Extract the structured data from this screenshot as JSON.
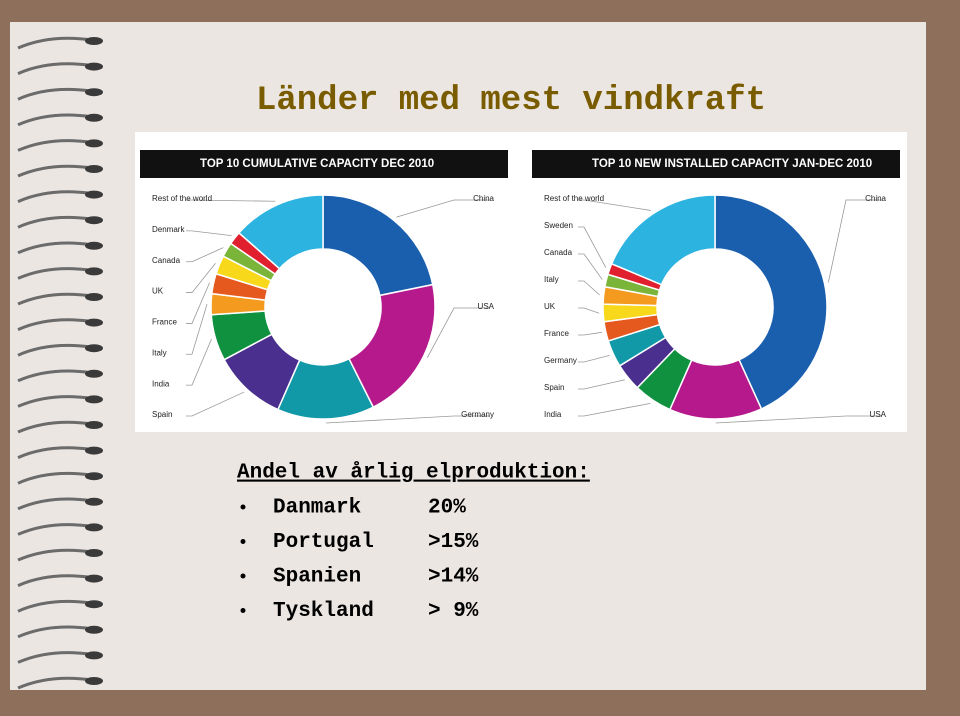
{
  "title": "Länder med mest vindkraft",
  "chart_data": [
    {
      "type": "pie",
      "title": "TOP 10 CUMULATIVE CAPACITY DEC 2010",
      "categories": [
        "China",
        "USA",
        "Germany",
        "Spain",
        "India",
        "Italy",
        "France",
        "UK",
        "Canada",
        "Denmark",
        "Rest of the world"
      ],
      "values": [
        21.8,
        20.8,
        14.0,
        10.6,
        6.7,
        3.0,
        2.9,
        2.7,
        2.1,
        1.9,
        13.5
      ],
      "colors": [
        "#1a5fae",
        "#b5198c",
        "#1199a8",
        "#4b2f8f",
        "#0f9140",
        "#f39a1f",
        "#e5581e",
        "#f8d81b",
        "#7ab53a",
        "#e0202f",
        "#2cb3e0"
      ]
    },
    {
      "type": "pie",
      "title": "TOP 10 NEW INSTALLED CAPACITY JAN-DEC 2010",
      "categories": [
        "China",
        "USA",
        "India",
        "Spain",
        "Germany",
        "France",
        "UK",
        "Italy",
        "Canada",
        "Sweden",
        "Rest of the world"
      ],
      "values": [
        43.2,
        13.4,
        5.6,
        4.0,
        3.9,
        2.8,
        2.5,
        2.5,
        1.8,
        1.6,
        18.7
      ],
      "colors": [
        "#1a5fae",
        "#b5198c",
        "#0f9140",
        "#4b2f8f",
        "#1199a8",
        "#e5581e",
        "#f8d81b",
        "#f39a1f",
        "#7ab53a",
        "#e0202f",
        "#2cb3e0"
      ]
    }
  ],
  "subtitle": "Andel av årlig elproduktion:",
  "list": [
    {
      "name": "Danmark",
      "value": "20%"
    },
    {
      "name": "Portugal",
      "value": ">15%"
    },
    {
      "name": "Spanien",
      "value": ">14%"
    },
    {
      "name": "Tyskland",
      "value": "> 9%"
    }
  ]
}
